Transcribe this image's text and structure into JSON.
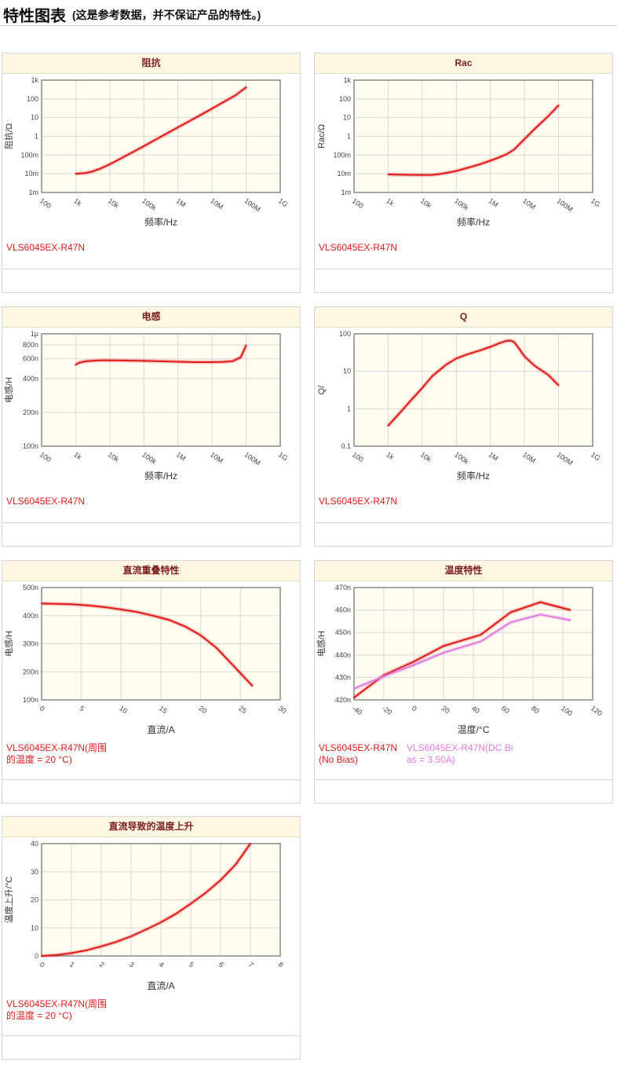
{
  "header": {
    "title": "特性图表",
    "subtitle": "(这是参考数据，并不保证产品的特性。)"
  },
  "chart_data": [
    {
      "id": "impedance",
      "type": "line",
      "title": "阻抗",
      "xlabel": "频率/Hz",
      "ylabel": "阻抗/Ω",
      "x_scale": "log",
      "y_scale": "log",
      "xlim": [
        100,
        1000000000
      ],
      "ylim": [
        0.001,
        1000
      ],
      "x_ticks": [
        {
          "v": 100,
          "l": "100"
        },
        {
          "v": 1000,
          "l": "1k"
        },
        {
          "v": 10000,
          "l": "10k"
        },
        {
          "v": 100000,
          "l": "100k"
        },
        {
          "v": 1000000,
          "l": "1M"
        },
        {
          "v": 10000000,
          "l": "10M"
        },
        {
          "v": 100000000,
          "l": "100M"
        },
        {
          "v": 1000000000,
          "l": "1G"
        }
      ],
      "y_ticks": [
        {
          "v": 0.001,
          "l": "1m"
        },
        {
          "v": 0.01,
          "l": "10m"
        },
        {
          "v": 0.1,
          "l": "100m"
        },
        {
          "v": 1,
          "l": "1"
        },
        {
          "v": 10,
          "l": "10"
        },
        {
          "v": 100,
          "l": "100"
        },
        {
          "v": 1000,
          "l": "1k"
        }
      ],
      "series": [
        {
          "name": "VLS6045EX-R47N",
          "color": "#e01a1a",
          "x": [
            1000,
            2000,
            3000,
            5000,
            10000,
            20000,
            50000,
            100000,
            200000,
            500000,
            1000000,
            2000000,
            5000000,
            10000000,
            20000000,
            50000000,
            100000000
          ],
          "y": [
            0.01,
            0.011,
            0.013,
            0.018,
            0.032,
            0.062,
            0.15,
            0.3,
            0.6,
            1.5,
            3.0,
            6.0,
            15,
            30,
            62,
            160,
            420
          ]
        }
      ]
    },
    {
      "id": "rac",
      "type": "line",
      "title": "Rac",
      "xlabel": "频率/Hz",
      "ylabel": "Rac/Ω",
      "x_scale": "log",
      "y_scale": "log",
      "xlim": [
        100,
        1000000000
      ],
      "ylim": [
        0.001,
        1000
      ],
      "x_ticks": [
        {
          "v": 100,
          "l": "100"
        },
        {
          "v": 1000,
          "l": "1k"
        },
        {
          "v": 10000,
          "l": "10k"
        },
        {
          "v": 100000,
          "l": "100k"
        },
        {
          "v": 1000000,
          "l": "1M"
        },
        {
          "v": 10000000,
          "l": "10M"
        },
        {
          "v": 100000000,
          "l": "100M"
        },
        {
          "v": 1000000000,
          "l": "1G"
        }
      ],
      "y_ticks": [
        {
          "v": 0.001,
          "l": "1m"
        },
        {
          "v": 0.01,
          "l": "10m"
        },
        {
          "v": 0.1,
          "l": "100m"
        },
        {
          "v": 1,
          "l": "1"
        },
        {
          "v": 10,
          "l": "10"
        },
        {
          "v": 100,
          "l": "100"
        },
        {
          "v": 1000,
          "l": "1k"
        }
      ],
      "series": [
        {
          "name": "VLS6045EX-R47N",
          "color": "#e01a1a",
          "x": [
            1000,
            3000,
            10000,
            20000,
            30000,
            50000,
            100000,
            200000,
            500000,
            1000000,
            2000000,
            3000000,
            5000000,
            10000000,
            20000000,
            50000000,
            100000000
          ],
          "y": [
            0.0092,
            0.0088,
            0.0085,
            0.0087,
            0.0095,
            0.011,
            0.014,
            0.02,
            0.032,
            0.05,
            0.08,
            0.11,
            0.2,
            0.7,
            2.5,
            12,
            45
          ]
        }
      ]
    },
    {
      "id": "inductance",
      "type": "line",
      "title": "电感",
      "xlabel": "频率/Hz",
      "ylabel": "电感/H",
      "x_scale": "log",
      "y_scale": "log",
      "xlim": [
        100,
        1000000000
      ],
      "ylim": [
        1e-07,
        1e-06
      ],
      "x_ticks": [
        {
          "v": 100,
          "l": "100"
        },
        {
          "v": 1000,
          "l": "1k"
        },
        {
          "v": 10000,
          "l": "10k"
        },
        {
          "v": 100000,
          "l": "100k"
        },
        {
          "v": 1000000,
          "l": "1M"
        },
        {
          "v": 10000000,
          "l": "10M"
        },
        {
          "v": 100000000,
          "l": "100M"
        },
        {
          "v": 1000000000,
          "l": "1G"
        }
      ],
      "y_ticks": [
        {
          "v": 1e-07,
          "l": "100n"
        },
        {
          "v": 2e-07,
          "l": "200n"
        },
        {
          "v": 4e-07,
          "l": "400n"
        },
        {
          "v": 6e-07,
          "l": "600n"
        },
        {
          "v": 8e-07,
          "l": "800n"
        },
        {
          "v": 1e-06,
          "l": "1μ"
        }
      ],
      "series": [
        {
          "name": "VLS6045EX-R47N",
          "color": "#e01a1a",
          "x": [
            1000,
            1200,
            1500,
            2000,
            3000,
            5000,
            10000,
            30000,
            100000,
            300000,
            1000000,
            3000000,
            10000000,
            20000000,
            40000000,
            70000000,
            100000000
          ],
          "y": [
            5.3e-07,
            5.5e-07,
            5.6e-07,
            5.7e-07,
            5.75e-07,
            5.8e-07,
            5.8e-07,
            5.78e-07,
            5.75e-07,
            5.7e-07,
            5.65e-07,
            5.6e-07,
            5.6e-07,
            5.62e-07,
            5.7e-07,
            6.2e-07,
            7.9e-07
          ]
        }
      ]
    },
    {
      "id": "q",
      "type": "line",
      "title": "Q",
      "xlabel": "频率/Hz",
      "ylabel": "Q/",
      "x_scale": "log",
      "y_scale": "log",
      "xlim": [
        100,
        1000000000
      ],
      "ylim": [
        0.1,
        100
      ],
      "x_ticks": [
        {
          "v": 100,
          "l": "100"
        },
        {
          "v": 1000,
          "l": "1k"
        },
        {
          "v": 10000,
          "l": "10k"
        },
        {
          "v": 100000,
          "l": "100k"
        },
        {
          "v": 1000000,
          "l": "1M"
        },
        {
          "v": 10000000,
          "l": "10M"
        },
        {
          "v": 100000000,
          "l": "100M"
        },
        {
          "v": 1000000000,
          "l": "1G"
        }
      ],
      "y_ticks": [
        {
          "v": 0.1,
          "l": "0.1"
        },
        {
          "v": 1,
          "l": "1"
        },
        {
          "v": 10,
          "l": "10"
        },
        {
          "v": 100,
          "l": "100"
        }
      ],
      "series": [
        {
          "name": "VLS6045EX-R47N",
          "color": "#e01a1a",
          "x": [
            1000,
            2000,
            5000,
            10000,
            20000,
            50000,
            100000,
            200000,
            500000,
            1000000,
            2000000,
            3000000,
            4000000,
            5000000,
            7000000,
            10000000,
            20000000,
            50000000,
            100000000
          ],
          "y": [
            0.35,
            0.7,
            1.8,
            3.6,
            7.5,
            15,
            22,
            28,
            36,
            45,
            58,
            65,
            66,
            60,
            40,
            25,
            14,
            8,
            4.2
          ]
        }
      ]
    },
    {
      "id": "dc-bias",
      "type": "line",
      "title": "直流重叠特性",
      "xlabel": "直流/A",
      "ylabel": "电感/H",
      "x_scale": "linear",
      "y_scale": "linear",
      "xlim": [
        0,
        30
      ],
      "ylim": [
        1e-07,
        5e-07
      ],
      "x_ticks": [
        {
          "v": 0,
          "l": "0"
        },
        {
          "v": 5,
          "l": "5"
        },
        {
          "v": 10,
          "l": "10"
        },
        {
          "v": 15,
          "l": "15"
        },
        {
          "v": 20,
          "l": "20"
        },
        {
          "v": 25,
          "l": "25"
        },
        {
          "v": 30,
          "l": "30"
        }
      ],
      "y_ticks": [
        {
          "v": 1e-07,
          "l": "100n"
        },
        {
          "v": 2e-07,
          "l": "200n"
        },
        {
          "v": 3e-07,
          "l": "300n"
        },
        {
          "v": 4e-07,
          "l": "400n"
        },
        {
          "v": 5e-07,
          "l": "500n"
        }
      ],
      "series": [
        {
          "name": "VLS6045EX-R47N(周围的温度 = 20 °C)",
          "color": "#e01a1a",
          "x": [
            0,
            2,
            4,
            6,
            8,
            10,
            12,
            14,
            16,
            18,
            20,
            22,
            24,
            26.5
          ],
          "y": [
            4.43e-07,
            4.42e-07,
            4.4e-07,
            4.36e-07,
            4.3e-07,
            4.22e-07,
            4.13e-07,
            4e-07,
            3.85e-07,
            3.62e-07,
            3.3e-07,
            2.85e-07,
            2.25e-07,
            1.5e-07
          ]
        }
      ]
    },
    {
      "id": "temperature",
      "type": "line",
      "title": "温度特性",
      "xlabel": "温度/°C",
      "ylabel": "电感/H",
      "x_scale": "linear",
      "y_scale": "linear",
      "xlim": [
        -40,
        120
      ],
      "ylim": [
        4.2e-07,
        4.7e-07
      ],
      "x_ticks": [
        {
          "v": -40,
          "l": "-40"
        },
        {
          "v": -20,
          "l": "-20"
        },
        {
          "v": 0,
          "l": "0"
        },
        {
          "v": 20,
          "l": "20"
        },
        {
          "v": 40,
          "l": "40"
        },
        {
          "v": 60,
          "l": "60"
        },
        {
          "v": 80,
          "l": "80"
        },
        {
          "v": 100,
          "l": "100"
        },
        {
          "v": 120,
          "l": "120"
        }
      ],
      "y_ticks": [
        {
          "v": 4.2e-07,
          "l": "420n"
        },
        {
          "v": 4.3e-07,
          "l": "430n"
        },
        {
          "v": 4.4e-07,
          "l": "440n"
        },
        {
          "v": 4.5e-07,
          "l": "450n"
        },
        {
          "v": 4.6e-07,
          "l": "460n"
        },
        {
          "v": 4.7e-07,
          "l": "470n"
        }
      ],
      "series": [
        {
          "name": "VLS6045EX-R47N(No Bias)",
          "color": "#e01a1a",
          "x": [
            -40,
            -20,
            0,
            20,
            45,
            65,
            85,
            105
          ],
          "y": [
            4.21e-07,
            4.31e-07,
            4.37e-07,
            4.44e-07,
            4.49e-07,
            4.59e-07,
            4.635e-07,
            4.6e-07
          ]
        },
        {
          "name": "VLS6045EX-R47N(DC Bias = 3.50A)",
          "color": "#e07be0",
          "x": [
            -40,
            -20,
            0,
            20,
            45,
            65,
            85,
            105
          ],
          "y": [
            4.25e-07,
            4.305e-07,
            4.355e-07,
            4.41e-07,
            4.46e-07,
            4.545e-07,
            4.58e-07,
            4.555e-07
          ]
        }
      ]
    },
    {
      "id": "temp-rise",
      "type": "line",
      "title": "直流导致的温度上升",
      "xlabel": "直流/A",
      "ylabel": "温度上升/°C",
      "x_scale": "linear",
      "y_scale": "linear",
      "xlim": [
        0,
        8
      ],
      "ylim": [
        0,
        40
      ],
      "x_ticks": [
        {
          "v": 0,
          "l": "0"
        },
        {
          "v": 1,
          "l": "1"
        },
        {
          "v": 2,
          "l": "2"
        },
        {
          "v": 3,
          "l": "3"
        },
        {
          "v": 4,
          "l": "4"
        },
        {
          "v": 5,
          "l": "5"
        },
        {
          "v": 6,
          "l": "6"
        },
        {
          "v": 7,
          "l": "7"
        },
        {
          "v": 8,
          "l": "8"
        }
      ],
      "y_ticks": [
        {
          "v": 0,
          "l": "0"
        },
        {
          "v": 10,
          "l": "10"
        },
        {
          "v": 20,
          "l": "20"
        },
        {
          "v": 30,
          "l": "30"
        },
        {
          "v": 40,
          "l": "40"
        }
      ],
      "series": [
        {
          "name": "VLS6045EX-R47N(周围的温度 = 20 °C)",
          "color": "#e01a1a",
          "x": [
            0,
            0.5,
            1,
            1.5,
            2,
            2.5,
            3,
            3.5,
            4,
            4.5,
            5,
            5.5,
            6,
            6.5,
            7
          ],
          "y": [
            0,
            0.3,
            1.0,
            2.0,
            3.4,
            5.0,
            7.0,
            9.4,
            12.0,
            15.0,
            18.6,
            22.5,
            27.0,
            32.5,
            40
          ]
        }
      ]
    }
  ],
  "legend_lines": {
    "impedance": [
      "VLS6045EX-R47N"
    ],
    "rac": [
      "VLS6045EX-R47N"
    ],
    "inductance": [
      "VLS6045EX-R47N"
    ],
    "q": [
      "VLS6045EX-R47N"
    ],
    "dc_bias": [
      "VLS6045EX-R47N(周围",
      "的温度 = 20 °C)"
    ],
    "temp_red": [
      "VLS6045EX-R47N",
      "(No Bias)"
    ],
    "temp_pink": [
      "VLS6045EX-R47N(DC Bi",
      "as = 3.50A)"
    ],
    "temp_rise": [
      "VLS6045EX-R47N(周围",
      "的温度 = 20 °C)"
    ]
  }
}
